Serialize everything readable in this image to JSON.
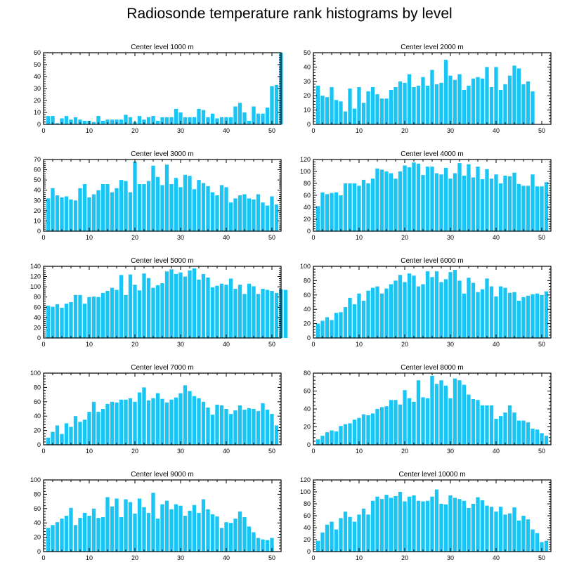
{
  "title": "Radiosonde temperature rank histograms by level",
  "colors": {
    "bar": "#18c5f4",
    "axis": "#000000"
  },
  "chart_data": [
    {
      "type": "bar",
      "title": "Center level 1000 m",
      "ylim": [
        0,
        60
      ],
      "yticks": [
        0,
        10,
        20,
        30,
        40,
        50,
        60
      ],
      "xlim": [
        0,
        52
      ],
      "xticks": [
        0,
        10,
        20,
        30,
        40,
        50
      ],
      "values": [
        7,
        7,
        1,
        5,
        7,
        4,
        6,
        4,
        3,
        3,
        2,
        7,
        3,
        4,
        4,
        4,
        4,
        8,
        6,
        2,
        7,
        4,
        6,
        7,
        3,
        6,
        6,
        6,
        13,
        10,
        6,
        6,
        6,
        13,
        12,
        6,
        9,
        5,
        6,
        6,
        6,
        15,
        18,
        10,
        3,
        15,
        9,
        9,
        14,
        32,
        33,
        60
      ]
    },
    {
      "type": "bar",
      "title": "Center level 2000 m",
      "ylim": [
        0,
        50
      ],
      "yticks": [
        0,
        10,
        20,
        30,
        40,
        50
      ],
      "xlim": [
        0,
        52
      ],
      "xticks": [
        0,
        10,
        20,
        30,
        40,
        50
      ],
      "values": [
        27,
        20,
        19,
        26,
        17,
        16,
        9,
        25,
        11,
        26,
        15,
        23,
        26,
        21,
        18,
        18,
        24,
        26,
        30,
        29,
        35,
        26,
        27,
        33,
        27,
        38,
        28,
        29,
        45,
        34,
        31,
        35,
        24,
        27,
        32,
        33,
        32,
        40,
        26,
        40,
        24,
        28,
        34,
        41,
        39,
        28,
        30,
        23
      ]
    },
    {
      "type": "bar",
      "title": "Center level 3000 m",
      "ylim": [
        0,
        70
      ],
      "yticks": [
        0,
        10,
        20,
        30,
        40,
        50,
        60,
        70
      ],
      "xlim": [
        0,
        52
      ],
      "xticks": [
        0,
        10,
        20,
        30,
        40,
        50
      ],
      "values": [
        32,
        42,
        35,
        33,
        34,
        31,
        30,
        42,
        46,
        33,
        36,
        40,
        46,
        46,
        38,
        42,
        50,
        49,
        38,
        68,
        46,
        46,
        49,
        64,
        53,
        45,
        65,
        46,
        52,
        43,
        55,
        54,
        41,
        50,
        47,
        44,
        38,
        35,
        45,
        43,
        28,
        32,
        35,
        36,
        32,
        31,
        36,
        28,
        25,
        34,
        26
      ]
    },
    {
      "type": "bar",
      "title": "Center level 4000 m",
      "ylim": [
        0,
        120
      ],
      "yticks": [
        0,
        20,
        40,
        60,
        80,
        100,
        120
      ],
      "xlim": [
        0,
        52
      ],
      "xticks": [
        0,
        10,
        20,
        30,
        40,
        50
      ],
      "values": [
        42,
        65,
        62,
        64,
        65,
        60,
        80,
        80,
        80,
        76,
        86,
        80,
        88,
        105,
        103,
        100,
        97,
        88,
        100,
        110,
        107,
        115,
        113,
        94,
        108,
        108,
        97,
        95,
        106,
        88,
        97,
        114,
        93,
        112,
        90,
        108,
        87,
        104,
        88,
        95,
        80,
        93,
        92,
        98,
        79,
        76,
        76,
        95,
        75,
        75,
        82
      ]
    },
    {
      "type": "bar",
      "title": "Center level 5000 m",
      "ylim": [
        0,
        140
      ],
      "yticks": [
        0,
        20,
        40,
        60,
        80,
        100,
        120,
        140
      ],
      "xlim": [
        0,
        52
      ],
      "xticks": [
        0,
        10,
        20,
        30,
        40,
        50
      ],
      "values": [
        63,
        61,
        66,
        59,
        67,
        70,
        84,
        84,
        67,
        80,
        81,
        80,
        88,
        92,
        98,
        94,
        123,
        84,
        124,
        104,
        93,
        126,
        117,
        98,
        103,
        107,
        130,
        134,
        125,
        128,
        120,
        132,
        136,
        114,
        125,
        118,
        99,
        102,
        106,
        104,
        116,
        96,
        104,
        86,
        106,
        101,
        86,
        96,
        94,
        92,
        88,
        95,
        94
      ]
    },
    {
      "type": "bar",
      "title": "Center level 6000 m",
      "ylim": [
        0,
        100
      ],
      "yticks": [
        0,
        20,
        40,
        60,
        80,
        100
      ],
      "xlim": [
        0,
        52
      ],
      "xticks": [
        0,
        10,
        20,
        30,
        40,
        50
      ],
      "values": [
        20,
        24,
        29,
        25,
        35,
        36,
        43,
        56,
        47,
        62,
        52,
        66,
        70,
        72,
        62,
        69,
        75,
        80,
        88,
        78,
        90,
        87,
        72,
        75,
        93,
        85,
        93,
        78,
        82,
        92,
        95,
        80,
        62,
        84,
        77,
        64,
        68,
        83,
        72,
        58,
        72,
        70,
        63,
        64,
        52,
        57,
        59,
        61,
        62,
        60,
        65
      ]
    },
    {
      "type": "bar",
      "title": "Center level 7000 m",
      "ylim": [
        0,
        100
      ],
      "yticks": [
        0,
        20,
        40,
        60,
        80,
        100
      ],
      "xlim": [
        0,
        52
      ],
      "xticks": [
        0,
        10,
        20,
        30,
        40,
        50
      ],
      "values": [
        10,
        18,
        27,
        15,
        30,
        25,
        40,
        32,
        35,
        46,
        60,
        46,
        50,
        57,
        60,
        59,
        63,
        63,
        65,
        60,
        73,
        80,
        62,
        65,
        72,
        64,
        59,
        63,
        66,
        72,
        83,
        75,
        68,
        65,
        60,
        52,
        42,
        56,
        55,
        50,
        43,
        48,
        55,
        49,
        51,
        50,
        47,
        58,
        49,
        43,
        27
      ]
    },
    {
      "type": "bar",
      "title": "Center level 8000 m",
      "ylim": [
        0,
        80
      ],
      "yticks": [
        0,
        20,
        40,
        60,
        80
      ],
      "xlim": [
        0,
        52
      ],
      "xticks": [
        0,
        10,
        20,
        30,
        40,
        50
      ],
      "values": [
        6,
        10,
        14,
        16,
        15,
        21,
        23,
        24,
        28,
        30,
        34,
        33,
        35,
        40,
        42,
        43,
        50,
        50,
        45,
        61,
        52,
        48,
        72,
        53,
        52,
        77,
        68,
        72,
        66,
        52,
        74,
        72,
        67,
        56,
        51,
        50,
        44,
        44,
        44,
        29,
        32,
        36,
        44,
        36,
        27,
        27,
        25,
        18,
        17,
        13,
        10
      ]
    },
    {
      "type": "bar",
      "title": "Center level 9000 m",
      "ylim": [
        0,
        100
      ],
      "yticks": [
        0,
        20,
        40,
        60,
        80,
        100
      ],
      "xlim": [
        0,
        52
      ],
      "xticks": [
        0,
        10,
        20,
        30,
        40,
        50
      ],
      "values": [
        33,
        37,
        41,
        46,
        50,
        61,
        37,
        47,
        54,
        50,
        60,
        47,
        48,
        76,
        63,
        74,
        48,
        73,
        69,
        53,
        74,
        62,
        54,
        82,
        46,
        66,
        71,
        59,
        66,
        64,
        50,
        57,
        65,
        54,
        73,
        59,
        52,
        49,
        33,
        41,
        40,
        46,
        56,
        48,
        35,
        27,
        19,
        17,
        16,
        19
      ]
    },
    {
      "type": "bar",
      "title": "Center level 10000 m",
      "ylim": [
        0,
        120
      ],
      "yticks": [
        0,
        20,
        40,
        60,
        80,
        100,
        120
      ],
      "xlim": [
        0,
        52
      ],
      "xticks": [
        0,
        10,
        20,
        30,
        40,
        50
      ],
      "values": [
        18,
        32,
        45,
        50,
        37,
        56,
        67,
        58,
        50,
        62,
        72,
        62,
        85,
        92,
        88,
        95,
        90,
        93,
        100,
        84,
        92,
        94,
        85,
        84,
        85,
        92,
        104,
        80,
        79,
        94,
        90,
        88,
        85,
        73,
        80,
        91,
        86,
        77,
        75,
        67,
        75,
        62,
        64,
        74,
        52,
        60,
        54,
        37,
        31,
        16,
        18
      ]
    }
  ]
}
